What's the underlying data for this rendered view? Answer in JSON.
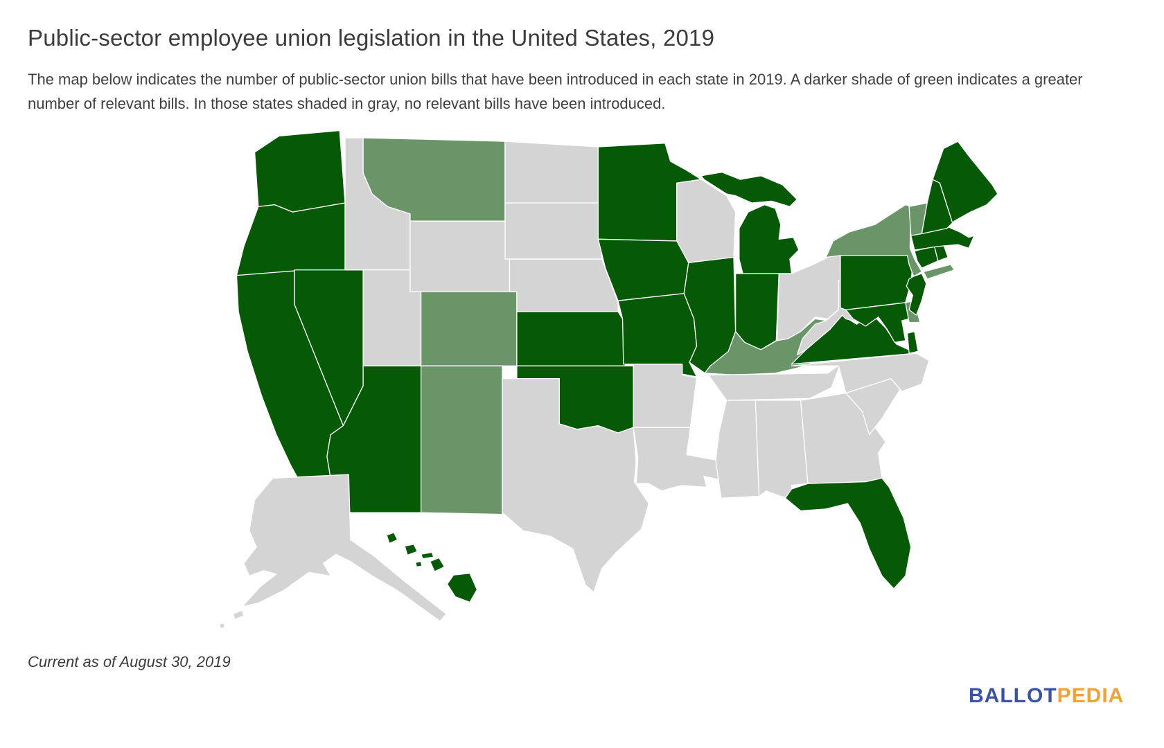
{
  "title": "Public-sector employee union legislation in the United States, 2019",
  "subtitle": "The map below indicates the number of public-sector union bills that have been introduced in each state in 2019. A darker shade of green indicates a greater number of relevant bills. In those states shaded in gray, no relevant bills have been introduced.",
  "footnote": "Current as of August 30, 2019",
  "logo": {
    "ballot": "BALLOT",
    "pedia": "PEDIA",
    "ballot_color": "#3A53A6",
    "pedia_color": "#F0A236"
  },
  "map": {
    "colors": {
      "dark_green": "#065A06",
      "medium_green": "#6A9569",
      "gray": "#D4D4D4",
      "border": "#FFFFFF"
    },
    "shade_meaning": {
      "dark_green": "greater number of relevant bills introduced",
      "medium_green": "fewer relevant bills introduced",
      "gray": "no relevant bills introduced"
    },
    "states": [
      {
        "code": "WA",
        "name": "Washington",
        "shade": "dark_green"
      },
      {
        "code": "OR",
        "name": "Oregon",
        "shade": "dark_green"
      },
      {
        "code": "CA",
        "name": "California",
        "shade": "dark_green"
      },
      {
        "code": "NV",
        "name": "Nevada",
        "shade": "dark_green"
      },
      {
        "code": "ID",
        "name": "Idaho",
        "shade": "gray"
      },
      {
        "code": "MT",
        "name": "Montana",
        "shade": "medium_green"
      },
      {
        "code": "WY",
        "name": "Wyoming",
        "shade": "gray"
      },
      {
        "code": "UT",
        "name": "Utah",
        "shade": "gray"
      },
      {
        "code": "CO",
        "name": "Colorado",
        "shade": "medium_green"
      },
      {
        "code": "AZ",
        "name": "Arizona",
        "shade": "dark_green"
      },
      {
        "code": "NM",
        "name": "New Mexico",
        "shade": "medium_green"
      },
      {
        "code": "ND",
        "name": "North Dakota",
        "shade": "gray"
      },
      {
        "code": "SD",
        "name": "South Dakota",
        "shade": "gray"
      },
      {
        "code": "NE",
        "name": "Nebraska",
        "shade": "gray"
      },
      {
        "code": "KS",
        "name": "Kansas",
        "shade": "dark_green"
      },
      {
        "code": "OK",
        "name": "Oklahoma",
        "shade": "dark_green"
      },
      {
        "code": "TX",
        "name": "Texas",
        "shade": "gray"
      },
      {
        "code": "MN",
        "name": "Minnesota",
        "shade": "dark_green"
      },
      {
        "code": "IA",
        "name": "Iowa",
        "shade": "dark_green"
      },
      {
        "code": "MO",
        "name": "Missouri",
        "shade": "dark_green"
      },
      {
        "code": "AR",
        "name": "Arkansas",
        "shade": "gray"
      },
      {
        "code": "LA",
        "name": "Louisiana",
        "shade": "gray"
      },
      {
        "code": "WI",
        "name": "Wisconsin",
        "shade": "gray"
      },
      {
        "code": "IL",
        "name": "Illinois",
        "shade": "dark_green"
      },
      {
        "code": "MI",
        "name": "Michigan",
        "shade": "dark_green"
      },
      {
        "code": "IN",
        "name": "Indiana",
        "shade": "dark_green"
      },
      {
        "code": "OH",
        "name": "Ohio",
        "shade": "gray"
      },
      {
        "code": "KY",
        "name": "Kentucky",
        "shade": "medium_green"
      },
      {
        "code": "TN",
        "name": "Tennessee",
        "shade": "gray"
      },
      {
        "code": "MS",
        "name": "Mississippi",
        "shade": "gray"
      },
      {
        "code": "AL",
        "name": "Alabama",
        "shade": "gray"
      },
      {
        "code": "GA",
        "name": "Georgia",
        "shade": "gray"
      },
      {
        "code": "FL",
        "name": "Florida",
        "shade": "dark_green"
      },
      {
        "code": "SC",
        "name": "South Carolina",
        "shade": "gray"
      },
      {
        "code": "NC",
        "name": "North Carolina",
        "shade": "gray"
      },
      {
        "code": "VA",
        "name": "Virginia",
        "shade": "dark_green"
      },
      {
        "code": "WV",
        "name": "West Virginia",
        "shade": "gray"
      },
      {
        "code": "MD",
        "name": "Maryland",
        "shade": "dark_green"
      },
      {
        "code": "DE",
        "name": "Delaware",
        "shade": "medium_green"
      },
      {
        "code": "PA",
        "name": "Pennsylvania",
        "shade": "dark_green"
      },
      {
        "code": "NJ",
        "name": "New Jersey",
        "shade": "dark_green"
      },
      {
        "code": "NY",
        "name": "New York",
        "shade": "medium_green"
      },
      {
        "code": "CT",
        "name": "Connecticut",
        "shade": "dark_green"
      },
      {
        "code": "RI",
        "name": "Rhode Island",
        "shade": "dark_green"
      },
      {
        "code": "MA",
        "name": "Massachusetts",
        "shade": "dark_green"
      },
      {
        "code": "VT",
        "name": "Vermont",
        "shade": "medium_green"
      },
      {
        "code": "NH",
        "name": "New Hampshire",
        "shade": "dark_green"
      },
      {
        "code": "ME",
        "name": "Maine",
        "shade": "dark_green"
      },
      {
        "code": "AK",
        "name": "Alaska",
        "shade": "gray"
      },
      {
        "code": "HI",
        "name": "Hawaii",
        "shade": "dark_green"
      }
    ]
  }
}
